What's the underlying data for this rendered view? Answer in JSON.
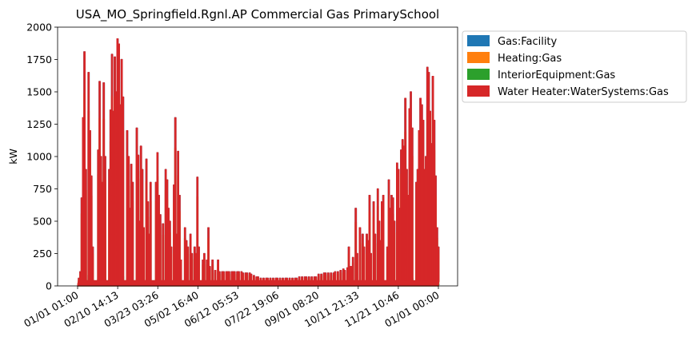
{
  "chart_data": {
    "type": "area",
    "title": "USA_MO_Springfield.Rgnl.AP Commercial Gas PrimarySchool",
    "xlabel": "",
    "ylabel": "kW",
    "ylim": [
      0,
      2000
    ],
    "yticks": [
      0,
      250,
      500,
      750,
      1000,
      1250,
      1500,
      1750,
      2000
    ],
    "xtick_labels": [
      "01/01 01:00",
      "02/10 14:13",
      "03/23 03:26",
      "05/02 16:40",
      "06/12 05:53",
      "07/22 19:06",
      "09/01 08:20",
      "10/11 21:33",
      "11/21 10:46",
      "01/01 00:00"
    ],
    "legend_position": "outside-right",
    "grid": false,
    "colors": {
      "Gas:Facility": "#1f77b4",
      "Heating:Gas": "#ff7f0e",
      "InteriorEquipment:Gas": "#2ca02c",
      "Water Heater:WaterSystems:Gas": "#d62728"
    },
    "series": [
      {
        "name": "Gas:Facility"
      },
      {
        "name": "Heating:Gas"
      },
      {
        "name": "InteriorEquipment:Gas"
      },
      {
        "name": "Water Heater:WaterSystems:Gas"
      }
    ],
    "x_unit": "day of year",
    "peaks": [
      [
        1,
        60
      ],
      [
        2,
        110
      ],
      [
        3,
        680
      ],
      [
        4,
        1300
      ],
      [
        5,
        1810
      ],
      [
        6,
        900
      ],
      [
        8,
        1650
      ],
      [
        9,
        1200
      ],
      [
        10,
        850
      ],
      [
        11,
        300
      ],
      [
        15,
        1050
      ],
      [
        16,
        1580
      ],
      [
        17,
        1000
      ],
      [
        18,
        800
      ],
      [
        19,
        1570
      ],
      [
        20,
        1000
      ],
      [
        23,
        900
      ],
      [
        24,
        1360
      ],
      [
        25,
        1790
      ],
      [
        26,
        1350
      ],
      [
        27,
        1770
      ],
      [
        28,
        1500
      ],
      [
        29,
        1910
      ],
      [
        30,
        1870
      ],
      [
        31,
        1400
      ],
      [
        32,
        1750
      ],
      [
        33,
        1460
      ],
      [
        36,
        1200
      ],
      [
        37,
        1000
      ],
      [
        38,
        600
      ],
      [
        39,
        940
      ],
      [
        40,
        800
      ],
      [
        43,
        1220
      ],
      [
        44,
        1010
      ],
      [
        45,
        500
      ],
      [
        46,
        1080
      ],
      [
        47,
        900
      ],
      [
        48,
        450
      ],
      [
        50,
        980
      ],
      [
        51,
        650
      ],
      [
        52,
        400
      ],
      [
        53,
        800
      ],
      [
        57,
        800
      ],
      [
        58,
        1030
      ],
      [
        59,
        700
      ],
      [
        60,
        550
      ],
      [
        62,
        480
      ],
      [
        64,
        900
      ],
      [
        65,
        820
      ],
      [
        66,
        600
      ],
      [
        67,
        500
      ],
      [
        68,
        300
      ],
      [
        70,
        780
      ],
      [
        71,
        1300
      ],
      [
        72,
        400
      ],
      [
        73,
        1040
      ],
      [
        74,
        700
      ],
      [
        75,
        200
      ],
      [
        78,
        450
      ],
      [
        79,
        350
      ],
      [
        80,
        300
      ],
      [
        82,
        400
      ],
      [
        83,
        250
      ],
      [
        85,
        300
      ],
      [
        86,
        250
      ],
      [
        87,
        840
      ],
      [
        88,
        300
      ],
      [
        91,
        200
      ],
      [
        92,
        250
      ],
      [
        94,
        200
      ],
      [
        95,
        450
      ],
      [
        96,
        150
      ],
      [
        98,
        200
      ],
      [
        100,
        120
      ],
      [
        102,
        200
      ],
      [
        103,
        110
      ],
      [
        105,
        110
      ],
      [
        106,
        110
      ],
      [
        108,
        110
      ],
      [
        109,
        110
      ],
      [
        110,
        110
      ],
      [
        112,
        110
      ],
      [
        113,
        110
      ],
      [
        114,
        110
      ],
      [
        116,
        110
      ],
      [
        117,
        110
      ],
      [
        119,
        110
      ],
      [
        120,
        100
      ],
      [
        122,
        100
      ],
      [
        123,
        100
      ],
      [
        125,
        100
      ],
      [
        126,
        90
      ],
      [
        128,
        80
      ],
      [
        130,
        70
      ],
      [
        131,
        70
      ],
      [
        133,
        60
      ],
      [
        135,
        60
      ],
      [
        137,
        60
      ],
      [
        138,
        60
      ],
      [
        140,
        60
      ],
      [
        142,
        60
      ],
      [
        144,
        60
      ],
      [
        145,
        60
      ],
      [
        147,
        60
      ],
      [
        149,
        60
      ],
      [
        151,
        60
      ],
      [
        152,
        60
      ],
      [
        154,
        60
      ],
      [
        156,
        60
      ],
      [
        158,
        60
      ],
      [
        159,
        60
      ],
      [
        161,
        70
      ],
      [
        163,
        70
      ],
      [
        165,
        70
      ],
      [
        166,
        70
      ],
      [
        168,
        70
      ],
      [
        170,
        70
      ],
      [
        172,
        70
      ],
      [
        173,
        70
      ],
      [
        175,
        90
      ],
      [
        177,
        90
      ],
      [
        179,
        100
      ],
      [
        180,
        100
      ],
      [
        182,
        100
      ],
      [
        184,
        100
      ],
      [
        186,
        100
      ],
      [
        187,
        110
      ],
      [
        189,
        110
      ],
      [
        191,
        120
      ],
      [
        193,
        130
      ],
      [
        194,
        120
      ],
      [
        196,
        140
      ],
      [
        197,
        300
      ],
      [
        198,
        150
      ],
      [
        199,
        150
      ],
      [
        200,
        220
      ],
      [
        202,
        600
      ],
      [
        203,
        250
      ],
      [
        205,
        450
      ],
      [
        207,
        400
      ],
      [
        208,
        300
      ],
      [
        210,
        400
      ],
      [
        211,
        350
      ],
      [
        212,
        700
      ],
      [
        213,
        250
      ],
      [
        215,
        650
      ],
      [
        216,
        400
      ],
      [
        218,
        750
      ],
      [
        219,
        500
      ],
      [
        220,
        350
      ],
      [
        221,
        650
      ],
      [
        222,
        700
      ],
      [
        225,
        300
      ],
      [
        226,
        820
      ],
      [
        227,
        600
      ],
      [
        228,
        700
      ],
      [
        229,
        680
      ],
      [
        230,
        500
      ],
      [
        232,
        950
      ],
      [
        233,
        900
      ],
      [
        234,
        600
      ],
      [
        235,
        1050
      ],
      [
        236,
        1130
      ],
      [
        237,
        1080
      ],
      [
        238,
        1450
      ],
      [
        239,
        900
      ],
      [
        240,
        700
      ],
      [
        241,
        1370
      ],
      [
        242,
        1500
      ],
      [
        243,
        1220
      ],
      [
        246,
        800
      ],
      [
        247,
        900
      ],
      [
        248,
        1200
      ],
      [
        249,
        1450
      ],
      [
        250,
        1400
      ],
      [
        251,
        1280
      ],
      [
        252,
        900
      ],
      [
        253,
        1000
      ],
      [
        254,
        1690
      ],
      [
        255,
        1650
      ],
      [
        256,
        1350
      ],
      [
        257,
        1100
      ],
      [
        258,
        1620
      ],
      [
        259,
        1280
      ],
      [
        260,
        850
      ],
      [
        261,
        450
      ],
      [
        262,
        300
      ]
    ]
  }
}
